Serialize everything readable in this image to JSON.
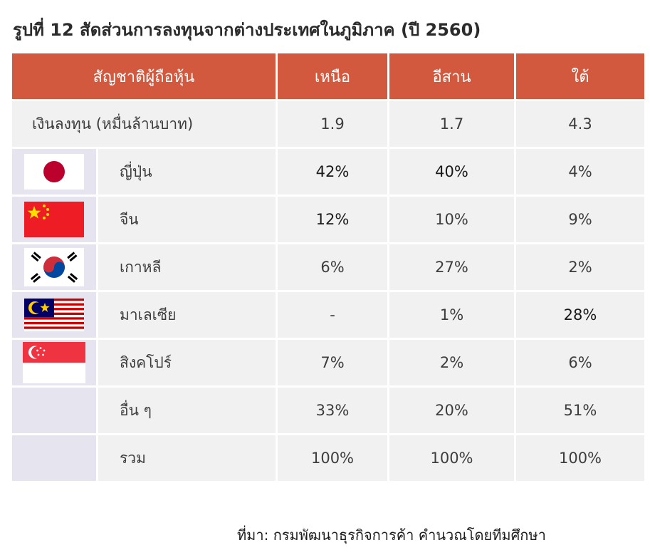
{
  "title": "รูปที่ 12 สัดส่วนการลงทุนจากต่างประเทศในภูมิภาค (ปี 2560)",
  "header": {
    "nationality": "สัญชาติผู้ถือหุ้น",
    "north": "เหนือ",
    "northeast": "อีสาน",
    "south": "ใต้"
  },
  "investment": {
    "label": "เงินลงทุน (หมื่นล้านบาท)",
    "north": "1.9",
    "northeast": "1.7",
    "south": "4.3"
  },
  "rows": [
    {
      "flag": "japan-flag-icon",
      "name": "ญี่ปุ่น",
      "north": "42%",
      "northeast": "40%",
      "south": "4%"
    },
    {
      "flag": "china-flag-icon",
      "name": "จีน",
      "north": "12%",
      "northeast": "10%",
      "south": "9%"
    },
    {
      "flag": "korea-flag-icon",
      "name": "เกาหลี",
      "north": "6%",
      "northeast": "27%",
      "south": "2%"
    },
    {
      "flag": "malaysia-flag-icon",
      "name": "มาเลเซีย",
      "north": "-",
      "northeast": "1%",
      "south": "28%"
    },
    {
      "flag": "singapore-flag-icon",
      "name": "สิงคโปร์",
      "north": "7%",
      "northeast": "2%",
      "south": "6%"
    },
    {
      "flag": "",
      "name": "อื่น ๆ",
      "north": "33%",
      "northeast": "20%",
      "south": "51%"
    },
    {
      "flag": "",
      "name": "รวม",
      "north": "100%",
      "northeast": "100%",
      "south": "100%"
    }
  ],
  "source": "ที่มา: กรมพัฒนาธุรกิจการค้า คำนวณโดยทีมศึกษา",
  "colors": {
    "header_bg": "#d2583e",
    "cell_bg": "#f1f1f1",
    "flag_cell_bg": "#e6e4ef"
  }
}
